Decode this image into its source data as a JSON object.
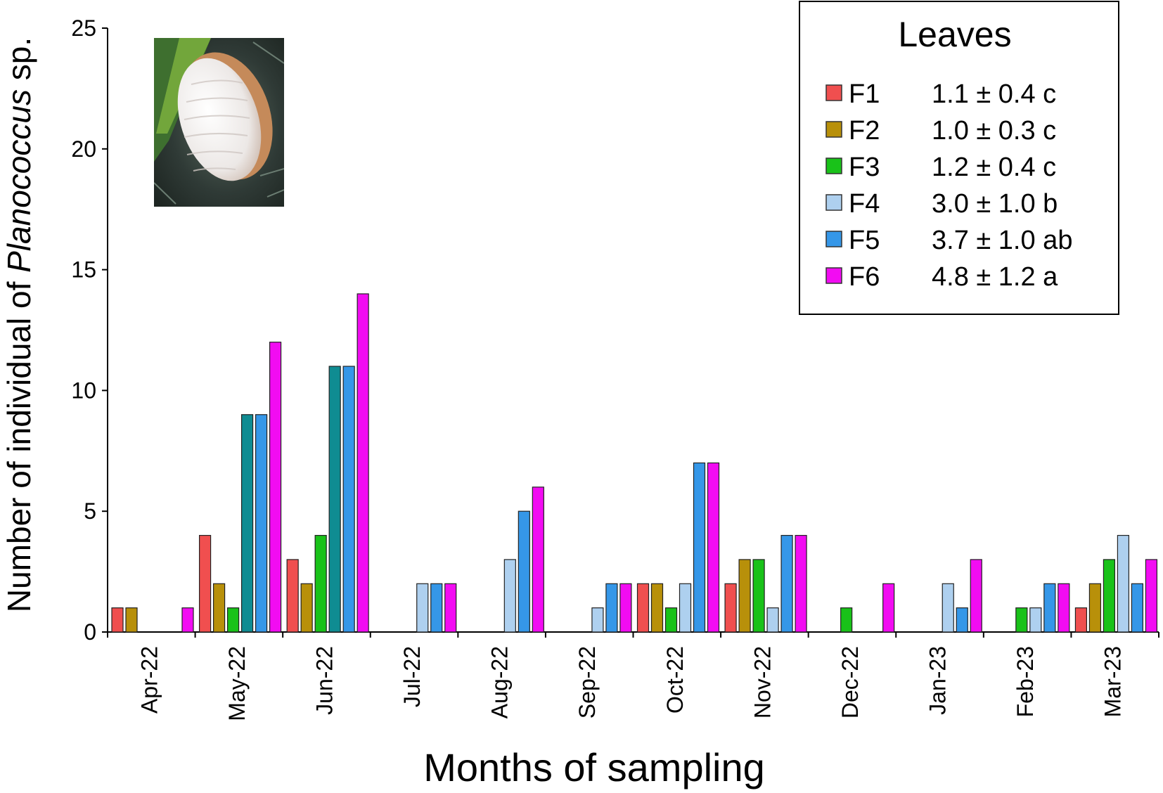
{
  "chart_data": {
    "type": "bar",
    "title": "",
    "xlabel": "Months of sampling",
    "ylabel_prefix": "Number of individual of ",
    "ylabel_italic": "Planococcus",
    "ylabel_suffix": " sp.",
    "ylim": [
      0,
      25
    ],
    "yticks": [
      0,
      5,
      10,
      15,
      20,
      25
    ],
    "categories": [
      "Apr-22",
      "May-22",
      "Jun-22",
      "Jul-22",
      "Aug-22",
      "Sep-22",
      "Oct-22",
      "Nov-22",
      "Dec-22",
      "Jan-23",
      "Feb-23",
      "Mar-23"
    ],
    "legend_title": "Leaves",
    "legend_position": "top-right",
    "series": [
      {
        "name": "F1",
        "stat": "1.1 ± 0.4 c",
        "color": "#f04f4f",
        "values": [
          1,
          4,
          3,
          0,
          0,
          0,
          2,
          2,
          0,
          0,
          0,
          1
        ]
      },
      {
        "name": "F2",
        "stat": "1.0 ± 0.3 c",
        "color": "#b8900a",
        "values": [
          1,
          2,
          2,
          0,
          0,
          0,
          2,
          3,
          0,
          0,
          0,
          2
        ]
      },
      {
        "name": "F3",
        "stat": "1.2 ± 0.4 c",
        "color": "#19c219",
        "values": [
          0,
          1,
          4,
          0,
          0,
          0,
          1,
          3,
          1,
          0,
          1,
          3
        ]
      },
      {
        "name": "F4",
        "stat": "3.0 ± 1.0 b",
        "color": "#aed0ef",
        "values": [
          0,
          9,
          11,
          2,
          3,
          1,
          2,
          1,
          0,
          2,
          1,
          4
        ],
        "alt_color": "#0f8c92"
      },
      {
        "name": "F5",
        "stat": "3.7 ± 1.0 ab",
        "color": "#3597e8",
        "values": [
          0,
          9,
          11,
          2,
          5,
          2,
          7,
          4,
          0,
          1,
          2,
          2
        ]
      },
      {
        "name": "F6",
        "stat": "4.8 ± 1.2 a",
        "color": "#f20cf2",
        "values": [
          1,
          12,
          14,
          2,
          6,
          2,
          7,
          4,
          2,
          3,
          2,
          3
        ]
      }
    ]
  },
  "inset_photo": {
    "icon": "mealybug-photo"
  }
}
